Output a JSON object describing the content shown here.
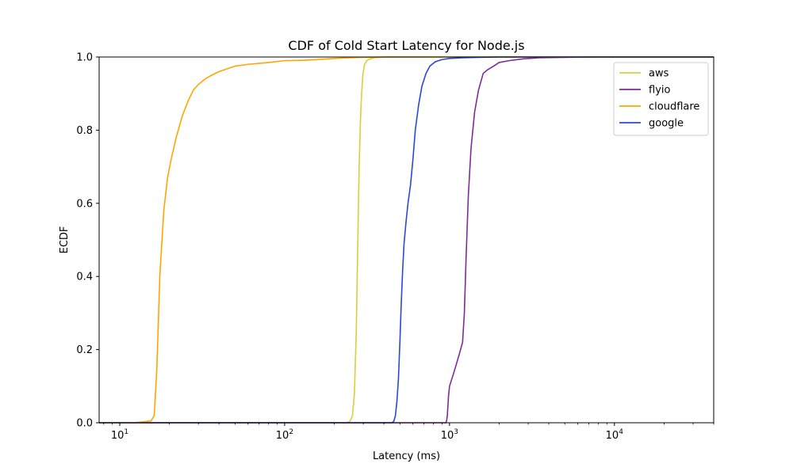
{
  "chart_data": {
    "type": "line",
    "title": "CDF of Cold Start Latency for Node.js",
    "xlabel": "Latency (ms)",
    "ylabel": "ECDF",
    "xscale": "log",
    "xlim": [
      7.5,
      40000
    ],
    "ylim": [
      0,
      1
    ],
    "grid": false,
    "legend_position": "top-right",
    "y_ticks": [
      {
        "value": 0.0,
        "label": "0.0"
      },
      {
        "value": 0.2,
        "label": "0.2"
      },
      {
        "value": 0.4,
        "label": "0.4"
      },
      {
        "value": 0.6,
        "label": "0.6"
      },
      {
        "value": 0.8,
        "label": "0.8"
      },
      {
        "value": 1.0,
        "label": "1.0"
      }
    ],
    "x_ticks": [
      {
        "value": 10,
        "base": "10",
        "exp": "1"
      },
      {
        "value": 100,
        "base": "10",
        "exp": "2"
      },
      {
        "value": 1000,
        "base": "10",
        "exp": "3"
      },
      {
        "value": 10000,
        "base": "10",
        "exp": "4"
      }
    ],
    "series": [
      {
        "name": "aws",
        "color": "#d8cf3c",
        "x": [
          7.5,
          240,
          250,
          258,
          265,
          272,
          278,
          283,
          288,
          293,
          298,
          305,
          315,
          330,
          350,
          380,
          420,
          500,
          40000
        ],
        "y": [
          0,
          0,
          0.005,
          0.02,
          0.08,
          0.25,
          0.5,
          0.7,
          0.82,
          0.9,
          0.95,
          0.98,
          0.99,
          0.995,
          0.998,
          0.999,
          1,
          1,
          1
        ]
      },
      {
        "name": "flyio",
        "color": "#7b2c9e",
        "x": [
          7.5,
          950,
          960,
          970,
          985,
          1000,
          1050,
          1100,
          1150,
          1200,
          1230,
          1260,
          1300,
          1350,
          1420,
          1500,
          1600,
          1700,
          1850,
          2000,
          2300,
          2800,
          3500,
          5000,
          8000,
          40000
        ],
        "y": [
          0,
          0,
          0.005,
          0.02,
          0.07,
          0.1,
          0.13,
          0.16,
          0.19,
          0.22,
          0.3,
          0.45,
          0.62,
          0.75,
          0.85,
          0.91,
          0.955,
          0.965,
          0.975,
          0.985,
          0.99,
          0.995,
          0.998,
          0.999,
          1,
          1
        ]
      },
      {
        "name": "cloudflare",
        "color": "#ffa500",
        "x": [
          7.5,
          12,
          14,
          15.5,
          16.2,
          16.8,
          17.5,
          18.5,
          19.5,
          20.5,
          22,
          24,
          26,
          28,
          30,
          33,
          36,
          40,
          50,
          60,
          80,
          100,
          130,
          160,
          200,
          250,
          300,
          400,
          600,
          40000
        ],
        "y": [
          0,
          0,
          0.003,
          0.005,
          0.02,
          0.15,
          0.4,
          0.58,
          0.67,
          0.72,
          0.78,
          0.84,
          0.88,
          0.91,
          0.925,
          0.94,
          0.95,
          0.96,
          0.975,
          0.98,
          0.985,
          0.99,
          0.991,
          0.993,
          0.996,
          0.998,
          0.999,
          1,
          1,
          1
        ]
      },
      {
        "name": "google",
        "color": "#2b47d6",
        "x": [
          7.5,
          450,
          460,
          470,
          480,
          490,
          500,
          510,
          520,
          530,
          545,
          560,
          580,
          600,
          620,
          650,
          680,
          720,
          760,
          820,
          900,
          1000,
          1200,
          1500,
          2000,
          40000
        ],
        "y": [
          0,
          0,
          0.005,
          0.02,
          0.06,
          0.12,
          0.22,
          0.33,
          0.42,
          0.49,
          0.55,
          0.6,
          0.65,
          0.72,
          0.8,
          0.87,
          0.92,
          0.955,
          0.975,
          0.987,
          0.993,
          0.996,
          0.998,
          0.999,
          1,
          1
        ]
      }
    ]
  }
}
